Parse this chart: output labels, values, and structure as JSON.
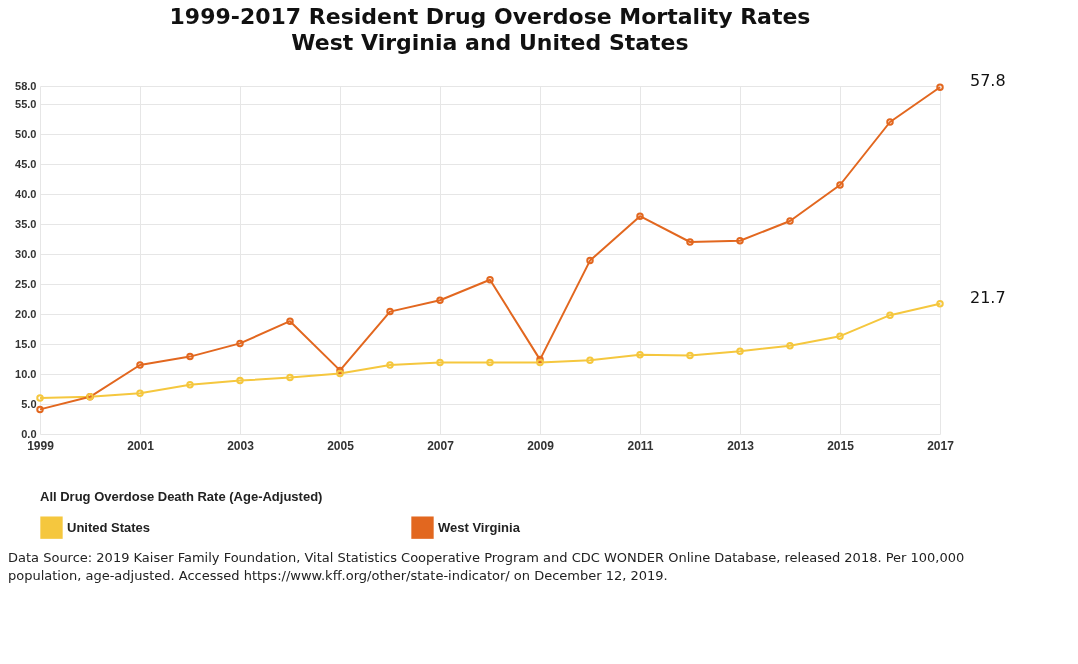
{
  "chart_data": {
    "type": "line",
    "title": "1999-2017 Resident Drug Overdose Mortality Rates",
    "subtitle": "West Virginia and United States",
    "x": [
      1999,
      2000,
      2001,
      2002,
      2003,
      2004,
      2005,
      2006,
      2007,
      2008,
      2009,
      2010,
      2011,
      2012,
      2013,
      2014,
      2015,
      2016,
      2017
    ],
    "series": [
      {
        "name": "United States",
        "color": "#f5c73e",
        "values": [
          6.0,
          6.2,
          6.8,
          8.2,
          8.9,
          9.4,
          10.1,
          11.5,
          11.9,
          11.9,
          11.9,
          12.3,
          13.2,
          13.1,
          13.8,
          14.7,
          16.3,
          19.8,
          21.7
        ]
      },
      {
        "name": "West Virginia",
        "color": "#e2671f",
        "values": [
          4.1,
          6.2,
          11.5,
          12.9,
          15.1,
          18.8,
          10.6,
          20.4,
          22.3,
          25.7,
          12.4,
          28.9,
          36.3,
          32.0,
          32.2,
          35.5,
          41.5,
          52.0,
          57.8
        ]
      }
    ],
    "legend_title": "All Drug Overdose Death Rate (Age-Adjusted)",
    "legend": "bottom",
    "marker": "circle",
    "grid": true,
    "xlim": [
      1999,
      2017
    ],
    "xticks": [
      1999,
      2001,
      2003,
      2005,
      2007,
      2009,
      2011,
      2013,
      2015,
      2017
    ],
    "ylim": [
      0,
      58
    ],
    "yticks": [
      {
        "value": 0,
        "label": "0.0"
      },
      {
        "value": 5,
        "label": "5.0"
      },
      {
        "value": 10,
        "label": "10.0"
      },
      {
        "value": 15,
        "label": "15.0"
      },
      {
        "value": 20,
        "label": "20.0"
      },
      {
        "value": 25,
        "label": "25.0"
      },
      {
        "value": 30,
        "label": "30.0"
      },
      {
        "value": 35,
        "label": "35.0"
      },
      {
        "value": 40,
        "label": "40.0"
      },
      {
        "value": 45,
        "label": "45.0"
      },
      {
        "value": 50,
        "label": "50.0"
      },
      {
        "value": 55,
        "label": "55.0"
      },
      {
        "value": 58,
        "label": "58.0"
      }
    ],
    "annotations": [
      {
        "text": "57.8",
        "x": 2017,
        "y": 57.8
      },
      {
        "text": "21.7",
        "x": 2017,
        "y": 21.7
      },
      "Data Source: 2019 Kaiser Family Foundation, Vital Statistics Cooperative Program and CDC WONDER Online Database, released 2018. Per 100,000 population, age-adjusted. Accessed  https://www.kff.org/other/state-indicator/ on December 12, 2019."
    ]
  }
}
